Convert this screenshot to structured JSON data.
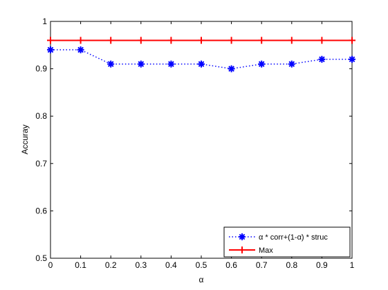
{
  "chart_data": {
    "type": "line",
    "xlabel": "α",
    "ylabel": "Accuray",
    "xlim": [
      0,
      1
    ],
    "ylim": [
      0.5,
      1
    ],
    "xticks": [
      0,
      0.1,
      0.2,
      0.3,
      0.4,
      0.5,
      0.6,
      0.7,
      0.8,
      0.9,
      1
    ],
    "yticks": [
      0.5,
      0.6,
      0.7,
      0.8,
      0.9,
      1
    ],
    "xtick_labels": [
      "0",
      "0.1",
      "0.2",
      "0.3",
      "0.4",
      "0.5",
      "0.6",
      "0.7",
      "0.8",
      "0.9",
      "1"
    ],
    "ytick_labels": [
      "0.5",
      "0.6",
      "0.7",
      "0.8",
      "0.9",
      "1"
    ],
    "x": [
      0,
      0.1,
      0.2,
      0.3,
      0.4,
      0.5,
      0.6,
      0.7,
      0.8,
      0.9,
      1
    ],
    "series": [
      {
        "name": "α * corr+(1-α) * struc",
        "values": [
          0.94,
          0.94,
          0.91,
          0.91,
          0.91,
          0.91,
          0.9,
          0.91,
          0.91,
          0.92,
          0.92
        ],
        "color": "#0000ff",
        "line_style": "dotted",
        "marker": "asterisk"
      },
      {
        "name": "Max",
        "values": [
          0.96,
          0.96,
          0.96,
          0.96,
          0.96,
          0.96,
          0.96,
          0.96,
          0.96,
          0.96,
          0.96
        ],
        "color": "#ff0000",
        "line_style": "solid",
        "marker": "plus"
      }
    ],
    "legend_position": "bottom-right",
    "grid": false
  }
}
